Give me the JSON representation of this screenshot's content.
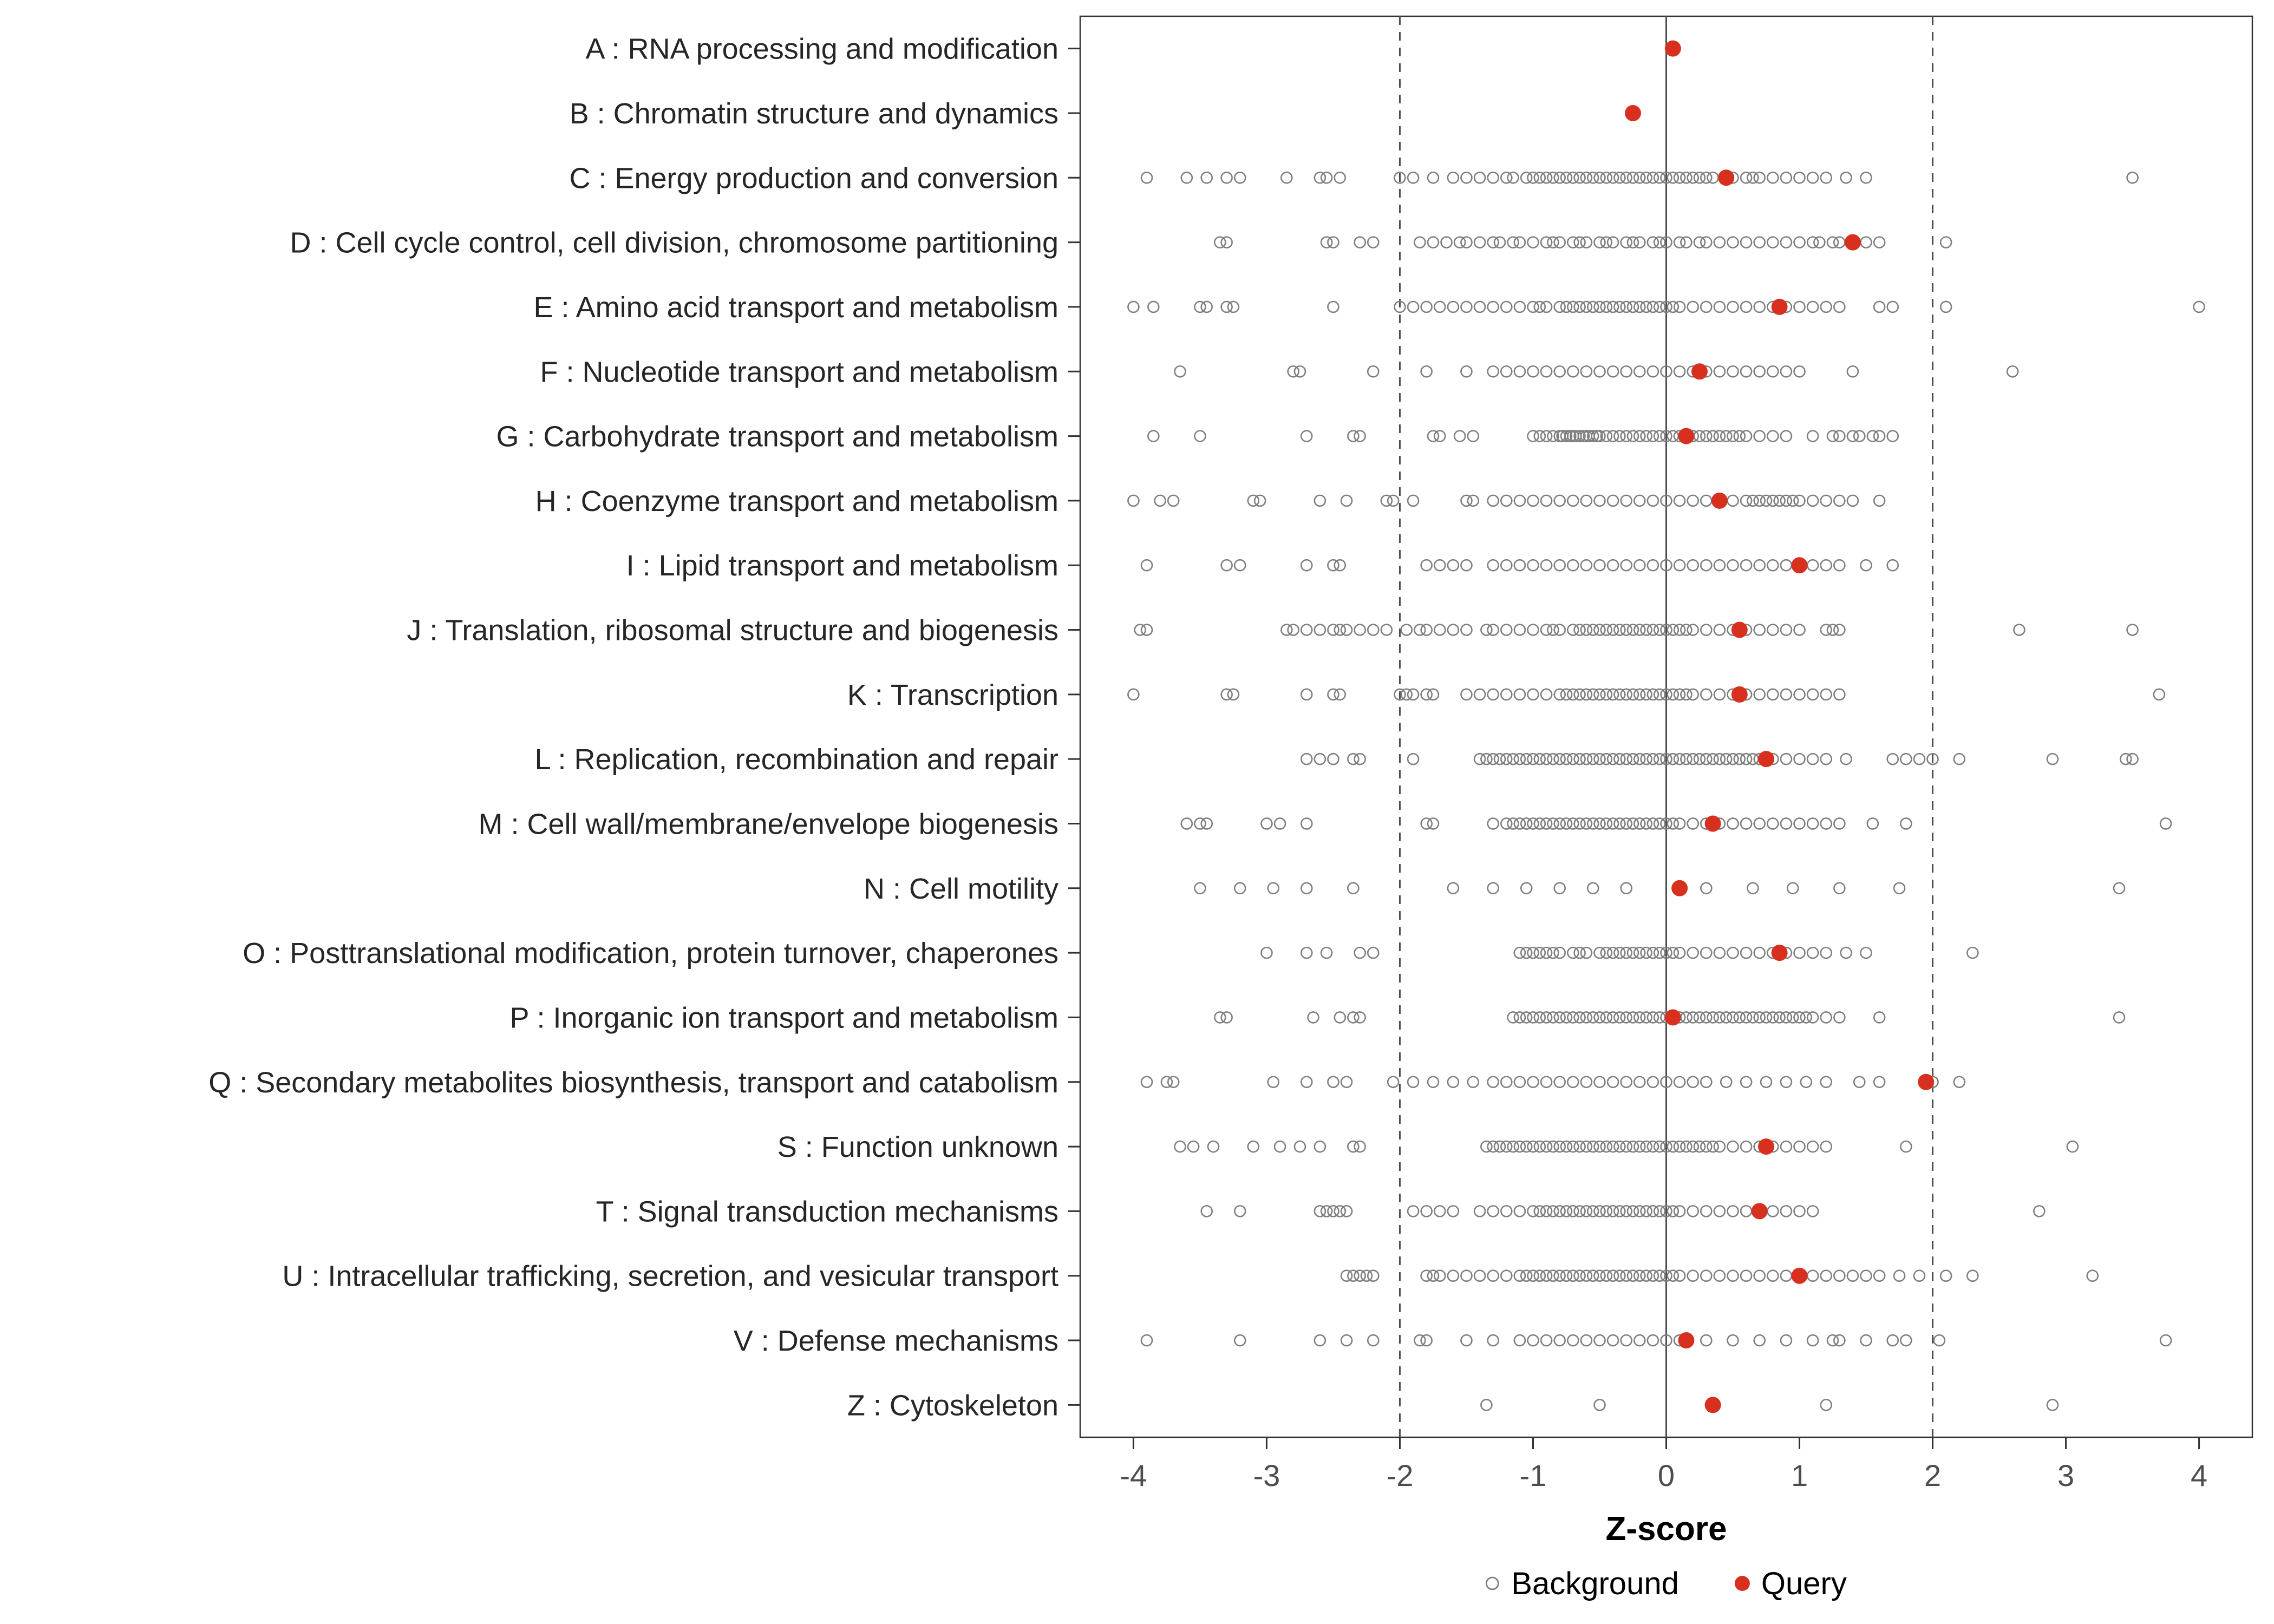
{
  "chart_data": {
    "type": "scatter",
    "title": "",
    "xlabel": "Z-score",
    "ylabel": "",
    "xlim": [
      -4.4,
      4.4
    ],
    "x_ticks": [
      -4,
      -3,
      -2,
      -1,
      0,
      1,
      2,
      3,
      4
    ],
    "grid": false,
    "reference_lines": {
      "solid": [
        0
      ],
      "dashed": [
        -2,
        2
      ]
    },
    "legend_position": "bottom",
    "legend": [
      {
        "label": "Background",
        "marker": "open"
      },
      {
        "label": "Query",
        "marker": "filled"
      }
    ],
    "colors": {
      "background_stroke": "#7f7f7f",
      "query_fill": "#d7301f",
      "axis_text": "#4d4d4d",
      "label_text": "#262626",
      "panel_border": "#333333",
      "ref_line": "#4d4d4d",
      "tick_mark": "#333333"
    },
    "categories": [
      {
        "label": "A : RNA processing and modification",
        "query": 0.05,
        "background": []
      },
      {
        "label": "B : Chromatin structure and dynamics",
        "query": -0.25,
        "background": []
      },
      {
        "label": "C : Energy production and conversion",
        "query": 0.45,
        "background": [
          -3.9,
          -3.6,
          -3.45,
          -3.3,
          -3.2,
          -2.85,
          -2.6,
          -2.55,
          -2.45,
          -2.0,
          -1.9,
          -1.75,
          -1.6,
          -1.5,
          -1.4,
          -1.3,
          -1.2,
          -1.15,
          -1.05,
          -1.0,
          -0.95,
          -0.9,
          -0.85,
          -0.8,
          -0.75,
          -0.7,
          -0.65,
          -0.6,
          -0.55,
          -0.5,
          -0.45,
          -0.4,
          -0.35,
          -0.3,
          -0.25,
          -0.2,
          -0.15,
          -0.1,
          -0.05,
          0.0,
          0.05,
          0.1,
          0.15,
          0.2,
          0.25,
          0.3,
          0.35,
          0.45,
          0.5,
          0.6,
          0.65,
          0.7,
          0.8,
          0.9,
          1.0,
          1.1,
          1.2,
          1.35,
          1.5,
          3.5
        ]
      },
      {
        "label": "D : Cell cycle control, cell division, chromosome partitioning",
        "query": 1.4,
        "background": [
          -3.35,
          -3.3,
          -2.55,
          -2.5,
          -2.3,
          -2.2,
          -1.85,
          -1.75,
          -1.65,
          -1.55,
          -1.5,
          -1.4,
          -1.3,
          -1.25,
          -1.15,
          -1.1,
          -1.0,
          -0.9,
          -0.85,
          -0.8,
          -0.7,
          -0.65,
          -0.6,
          -0.5,
          -0.45,
          -0.4,
          -0.3,
          -0.25,
          -0.2,
          -0.1,
          -0.05,
          0.0,
          0.1,
          0.15,
          0.25,
          0.3,
          0.4,
          0.5,
          0.6,
          0.7,
          0.8,
          0.9,
          1.0,
          1.1,
          1.15,
          1.25,
          1.3,
          1.5,
          1.6,
          2.1
        ]
      },
      {
        "label": "E : Amino acid transport and metabolism",
        "query": 0.85,
        "background": [
          -4.0,
          -3.85,
          -3.5,
          -3.45,
          -3.3,
          -3.25,
          -2.5,
          -2.0,
          -1.9,
          -1.8,
          -1.7,
          -1.6,
          -1.5,
          -1.4,
          -1.3,
          -1.2,
          -1.1,
          -1.0,
          -0.95,
          -0.9,
          -0.8,
          -0.75,
          -0.7,
          -0.65,
          -0.6,
          -0.55,
          -0.5,
          -0.45,
          -0.4,
          -0.35,
          -0.3,
          -0.25,
          -0.2,
          -0.15,
          -0.1,
          -0.05,
          0.0,
          0.05,
          0.1,
          0.2,
          0.3,
          0.4,
          0.5,
          0.6,
          0.7,
          0.8,
          0.9,
          1.0,
          1.1,
          1.2,
          1.3,
          1.6,
          1.7,
          2.1,
          4.0
        ]
      },
      {
        "label": "F : Nucleotide transport and metabolism",
        "query": 0.25,
        "background": [
          -3.65,
          -2.8,
          -2.75,
          -2.2,
          -1.8,
          -1.5,
          -1.3,
          -1.2,
          -1.1,
          -1.0,
          -0.9,
          -0.8,
          -0.7,
          -0.6,
          -0.5,
          -0.4,
          -0.3,
          -0.2,
          -0.1,
          0.0,
          0.1,
          0.2,
          0.3,
          0.4,
          0.5,
          0.6,
          0.7,
          0.8,
          0.9,
          1.0,
          1.4,
          2.6
        ]
      },
      {
        "label": "G : Carbohydrate transport and metabolism",
        "query": 0.15,
        "background": [
          -3.85,
          -3.5,
          -2.7,
          -2.35,
          -2.3,
          -1.75,
          -1.7,
          -1.55,
          -1.45,
          -1.0,
          -0.95,
          -0.9,
          -0.85,
          -0.8,
          -0.78,
          -0.75,
          -0.72,
          -0.7,
          -0.68,
          -0.65,
          -0.62,
          -0.6,
          -0.58,
          -0.55,
          -0.52,
          -0.5,
          -0.45,
          -0.4,
          -0.35,
          -0.3,
          -0.25,
          -0.2,
          -0.15,
          -0.1,
          -0.05,
          0.0,
          0.05,
          0.1,
          0.2,
          0.25,
          0.3,
          0.35,
          0.4,
          0.45,
          0.5,
          0.55,
          0.6,
          0.7,
          0.8,
          0.9,
          1.1,
          1.25,
          1.3,
          1.4,
          1.45,
          1.55,
          1.6,
          1.7
        ]
      },
      {
        "label": "H : Coenzyme transport and metabolism",
        "query": 0.4,
        "background": [
          -4.0,
          -3.8,
          -3.7,
          -3.1,
          -3.05,
          -2.6,
          -2.4,
          -2.1,
          -2.05,
          -1.9,
          -1.5,
          -1.45,
          -1.3,
          -1.2,
          -1.1,
          -1.0,
          -0.9,
          -0.8,
          -0.7,
          -0.6,
          -0.5,
          -0.4,
          -0.3,
          -0.2,
          -0.1,
          0.0,
          0.1,
          0.2,
          0.3,
          0.4,
          0.5,
          0.6,
          0.65,
          0.7,
          0.75,
          0.8,
          0.85,
          0.9,
          0.95,
          1.0,
          1.1,
          1.2,
          1.3,
          1.4,
          1.6
        ]
      },
      {
        "label": "I : Lipid transport and metabolism",
        "query": 1.0,
        "background": [
          -3.9,
          -3.3,
          -3.2,
          -2.7,
          -2.5,
          -2.45,
          -1.8,
          -1.7,
          -1.6,
          -1.5,
          -1.3,
          -1.2,
          -1.1,
          -1.0,
          -0.9,
          -0.8,
          -0.7,
          -0.6,
          -0.5,
          -0.4,
          -0.3,
          -0.2,
          -0.1,
          0.0,
          0.1,
          0.2,
          0.3,
          0.4,
          0.5,
          0.6,
          0.7,
          0.8,
          0.9,
          1.0,
          1.1,
          1.2,
          1.3,
          1.5,
          1.7
        ]
      },
      {
        "label": "J : Translation, ribosomal structure and biogenesis",
        "query": 0.55,
        "background": [
          -3.95,
          -3.9,
          -2.85,
          -2.8,
          -2.7,
          -2.6,
          -2.5,
          -2.45,
          -2.4,
          -2.3,
          -2.2,
          -2.1,
          -1.95,
          -1.85,
          -1.8,
          -1.7,
          -1.6,
          -1.5,
          -1.35,
          -1.3,
          -1.2,
          -1.1,
          -1.0,
          -0.9,
          -0.85,
          -0.8,
          -0.7,
          -0.65,
          -0.6,
          -0.55,
          -0.5,
          -0.45,
          -0.4,
          -0.35,
          -0.3,
          -0.25,
          -0.2,
          -0.15,
          -0.1,
          -0.05,
          0.0,
          0.05,
          0.1,
          0.15,
          0.2,
          0.3,
          0.4,
          0.5,
          0.6,
          0.7,
          0.8,
          0.9,
          1.0,
          1.2,
          1.25,
          1.3,
          2.65,
          3.5
        ]
      },
      {
        "label": "K : Transcription",
        "query": 0.55,
        "background": [
          -4.0,
          -3.3,
          -3.25,
          -2.7,
          -2.5,
          -2.45,
          -2.0,
          -1.95,
          -1.9,
          -1.8,
          -1.75,
          -1.5,
          -1.4,
          -1.3,
          -1.2,
          -1.1,
          -1.0,
          -0.9,
          -0.8,
          -0.75,
          -0.7,
          -0.65,
          -0.6,
          -0.55,
          -0.5,
          -0.45,
          -0.4,
          -0.35,
          -0.3,
          -0.25,
          -0.2,
          -0.15,
          -0.1,
          -0.05,
          0.0,
          0.05,
          0.1,
          0.15,
          0.2,
          0.3,
          0.4,
          0.5,
          0.6,
          0.7,
          0.8,
          0.9,
          1.0,
          1.1,
          1.2,
          1.3,
          3.7
        ]
      },
      {
        "label": "L : Replication, recombination and repair",
        "query": 0.75,
        "background": [
          -2.7,
          -2.6,
          -2.5,
          -2.35,
          -2.3,
          -1.9,
          -1.4,
          -1.35,
          -1.3,
          -1.25,
          -1.2,
          -1.15,
          -1.1,
          -1.05,
          -1.0,
          -0.95,
          -0.9,
          -0.85,
          -0.8,
          -0.75,
          -0.7,
          -0.65,
          -0.6,
          -0.55,
          -0.5,
          -0.45,
          -0.4,
          -0.35,
          -0.3,
          -0.25,
          -0.2,
          -0.15,
          -0.1,
          -0.05,
          0.0,
          0.05,
          0.1,
          0.15,
          0.2,
          0.25,
          0.3,
          0.35,
          0.4,
          0.45,
          0.5,
          0.55,
          0.6,
          0.65,
          0.7,
          0.8,
          0.9,
          1.0,
          1.1,
          1.2,
          1.35,
          1.7,
          1.8,
          1.9,
          2.0,
          2.2,
          2.9,
          3.45,
          3.5
        ]
      },
      {
        "label": "M : Cell wall/membrane/envelope biogenesis",
        "query": 0.35,
        "background": [
          -3.6,
          -3.5,
          -3.45,
          -3.0,
          -2.9,
          -2.7,
          -1.8,
          -1.75,
          -1.3,
          -1.2,
          -1.15,
          -1.1,
          -1.05,
          -1.0,
          -0.95,
          -0.9,
          -0.85,
          -0.8,
          -0.75,
          -0.7,
          -0.65,
          -0.6,
          -0.55,
          -0.5,
          -0.45,
          -0.4,
          -0.35,
          -0.3,
          -0.25,
          -0.2,
          -0.15,
          -0.1,
          -0.05,
          0.0,
          0.05,
          0.1,
          0.2,
          0.3,
          0.4,
          0.5,
          0.6,
          0.7,
          0.8,
          0.9,
          1.0,
          1.1,
          1.2,
          1.3,
          1.55,
          1.8,
          3.75
        ]
      },
      {
        "label": "N : Cell motility",
        "query": 0.1,
        "background": [
          -3.5,
          -3.2,
          -2.95,
          -2.7,
          -2.35,
          -1.6,
          -1.3,
          -1.05,
          -0.8,
          -0.55,
          -0.3,
          0.3,
          0.65,
          0.95,
          1.3,
          1.75,
          3.4
        ]
      },
      {
        "label": "O : Posttranslational modification, protein turnover, chaperones",
        "query": 0.85,
        "background": [
          -3.0,
          -2.7,
          -2.55,
          -2.3,
          -2.2,
          -1.1,
          -1.05,
          -1.0,
          -0.95,
          -0.9,
          -0.85,
          -0.8,
          -0.7,
          -0.65,
          -0.6,
          -0.5,
          -0.45,
          -0.4,
          -0.35,
          -0.3,
          -0.25,
          -0.2,
          -0.15,
          -0.1,
          -0.05,
          0.0,
          0.05,
          0.1,
          0.2,
          0.3,
          0.4,
          0.5,
          0.6,
          0.7,
          0.8,
          0.9,
          1.0,
          1.1,
          1.2,
          1.35,
          1.5,
          2.3
        ]
      },
      {
        "label": "P : Inorganic ion transport and metabolism",
        "query": 0.05,
        "background": [
          -3.35,
          -3.3,
          -2.65,
          -2.45,
          -2.35,
          -2.3,
          -1.15,
          -1.1,
          -1.05,
          -1.0,
          -0.95,
          -0.9,
          -0.85,
          -0.8,
          -0.75,
          -0.7,
          -0.65,
          -0.6,
          -0.55,
          -0.5,
          -0.45,
          -0.4,
          -0.35,
          -0.3,
          -0.25,
          -0.2,
          -0.15,
          -0.1,
          -0.05,
          0.0,
          0.05,
          0.1,
          0.15,
          0.2,
          0.25,
          0.3,
          0.35,
          0.4,
          0.45,
          0.5,
          0.55,
          0.6,
          0.65,
          0.7,
          0.75,
          0.8,
          0.85,
          0.9,
          0.95,
          1.0,
          1.05,
          1.1,
          1.2,
          1.3,
          1.6,
          3.4
        ]
      },
      {
        "label": "Q : Secondary metabolites biosynthesis, transport and catabolism",
        "query": 1.95,
        "background": [
          -3.9,
          -3.75,
          -3.7,
          -2.95,
          -2.7,
          -2.5,
          -2.4,
          -2.05,
          -1.9,
          -1.75,
          -1.6,
          -1.45,
          -1.3,
          -1.2,
          -1.1,
          -1.0,
          -0.9,
          -0.8,
          -0.7,
          -0.6,
          -0.5,
          -0.4,
          -0.3,
          -0.2,
          -0.1,
          0.0,
          0.1,
          0.2,
          0.3,
          0.45,
          0.6,
          0.75,
          0.9,
          1.05,
          1.2,
          1.45,
          1.6,
          2.0,
          2.2
        ]
      },
      {
        "label": "S : Function unknown",
        "query": 0.75,
        "background": [
          -3.65,
          -3.55,
          -3.4,
          -3.1,
          -2.9,
          -2.75,
          -2.6,
          -2.35,
          -2.3,
          -1.35,
          -1.3,
          -1.25,
          -1.2,
          -1.15,
          -1.1,
          -1.05,
          -1.0,
          -0.95,
          -0.9,
          -0.85,
          -0.8,
          -0.75,
          -0.7,
          -0.65,
          -0.6,
          -0.55,
          -0.5,
          -0.45,
          -0.4,
          -0.35,
          -0.3,
          -0.25,
          -0.2,
          -0.15,
          -0.1,
          -0.05,
          0.0,
          0.05,
          0.1,
          0.15,
          0.2,
          0.25,
          0.3,
          0.35,
          0.4,
          0.5,
          0.6,
          0.7,
          0.8,
          0.9,
          1.0,
          1.1,
          1.2,
          1.8,
          3.05
        ]
      },
      {
        "label": "T : Signal transduction mechanisms",
        "query": 0.7,
        "background": [
          -3.45,
          -3.2,
          -2.6,
          -2.55,
          -2.5,
          -2.45,
          -2.4,
          -1.9,
          -1.8,
          -1.7,
          -1.6,
          -1.4,
          -1.3,
          -1.2,
          -1.1,
          -1.0,
          -0.95,
          -0.9,
          -0.85,
          -0.8,
          -0.75,
          -0.7,
          -0.65,
          -0.6,
          -0.55,
          -0.5,
          -0.45,
          -0.4,
          -0.35,
          -0.3,
          -0.25,
          -0.2,
          -0.15,
          -0.1,
          -0.05,
          0.0,
          0.05,
          0.1,
          0.2,
          0.3,
          0.4,
          0.5,
          0.6,
          0.7,
          0.8,
          0.9,
          1.0,
          1.1,
          2.8
        ]
      },
      {
        "label": "U : Intracellular trafficking, secretion, and vesicular transport",
        "query": 1.0,
        "background": [
          -2.4,
          -2.35,
          -2.3,
          -2.25,
          -2.2,
          -1.8,
          -1.75,
          -1.7,
          -1.6,
          -1.5,
          -1.4,
          -1.3,
          -1.2,
          -1.1,
          -1.05,
          -1.0,
          -0.95,
          -0.9,
          -0.85,
          -0.8,
          -0.75,
          -0.7,
          -0.65,
          -0.6,
          -0.55,
          -0.5,
          -0.45,
          -0.4,
          -0.35,
          -0.3,
          -0.25,
          -0.2,
          -0.15,
          -0.1,
          -0.05,
          0.0,
          0.05,
          0.1,
          0.2,
          0.3,
          0.4,
          0.5,
          0.6,
          0.7,
          0.8,
          0.9,
          1.0,
          1.1,
          1.2,
          1.3,
          1.4,
          1.5,
          1.6,
          1.75,
          1.9,
          2.1,
          2.3,
          3.2
        ]
      },
      {
        "label": "V : Defense mechanisms",
        "query": 0.15,
        "background": [
          -3.9,
          -3.2,
          -2.6,
          -2.4,
          -2.2,
          -1.85,
          -1.8,
          -1.5,
          -1.3,
          -1.1,
          -1.0,
          -0.9,
          -0.8,
          -0.7,
          -0.6,
          -0.5,
          -0.4,
          -0.3,
          -0.2,
          -0.1,
          0.0,
          0.1,
          0.3,
          0.5,
          0.7,
          0.9,
          1.1,
          1.25,
          1.3,
          1.5,
          1.7,
          1.8,
          2.05,
          3.75
        ]
      },
      {
        "label": "Z : Cytoskeleton",
        "query": 0.35,
        "background": [
          -1.35,
          -0.5,
          1.2,
          2.9
        ]
      }
    ]
  }
}
